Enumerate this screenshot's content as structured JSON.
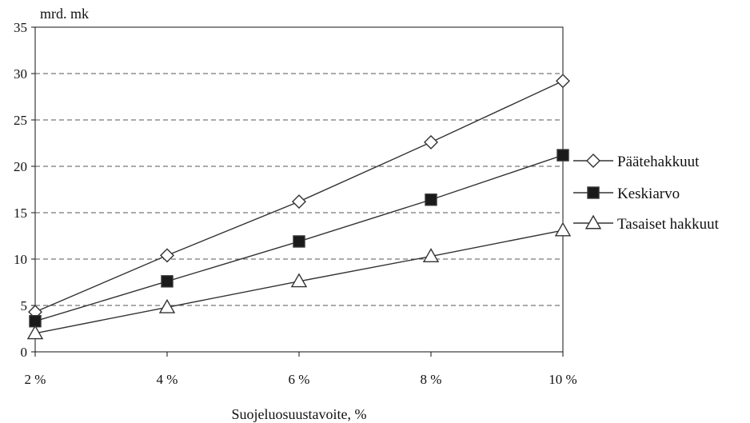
{
  "chart_data": {
    "type": "line",
    "title": "",
    "ylabel": "mrd. mk",
    "xlabel": "Suojeluosuustavoite, %",
    "categories": [
      "2 %",
      "4 %",
      "6 %",
      "8 %",
      "10 %"
    ],
    "ylim": [
      0,
      35
    ],
    "yticks": [
      0,
      5,
      10,
      15,
      20,
      25,
      30,
      35
    ],
    "grid": "horizontal-dashed",
    "legend_position": "right",
    "series": [
      {
        "name": "Päätehakkuut",
        "marker": "diamond-open",
        "values": [
          4.3,
          10.4,
          16.2,
          22.6,
          29.2
        ]
      },
      {
        "name": "Keskiarvo",
        "marker": "square-filled",
        "values": [
          3.3,
          7.6,
          11.9,
          16.4,
          21.2
        ]
      },
      {
        "name": "Tasaiset hakkuut",
        "marker": "triangle-open",
        "values": [
          2.0,
          4.8,
          7.6,
          10.3,
          13.1
        ]
      }
    ],
    "colors": {
      "line": "#333333",
      "grid": "#555555"
    }
  }
}
